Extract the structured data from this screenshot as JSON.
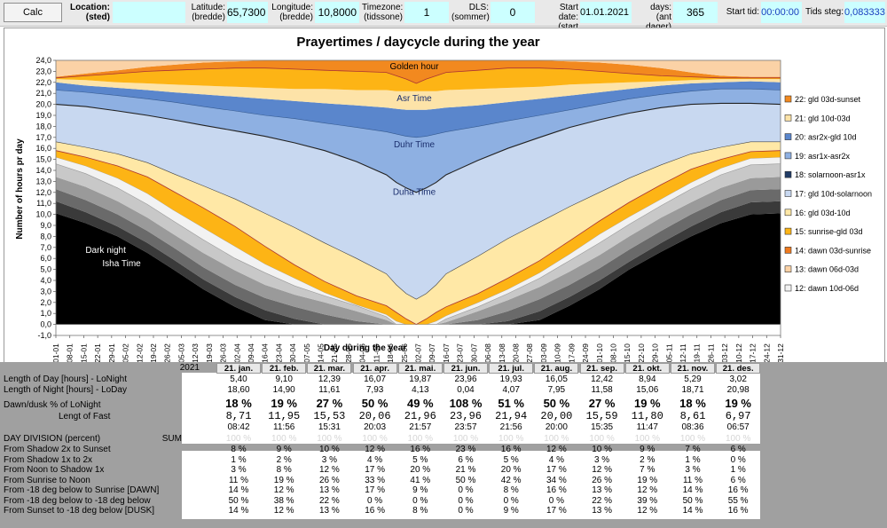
{
  "header": {
    "calc_label": "Calc",
    "location_label": "Location:",
    "location_sub": "(sted)",
    "location_value": "",
    "latitude_label": "Latitude:",
    "latitude_sub": "(bredde)",
    "latitude_value": "65,7300",
    "longitude_label": "Longitude:",
    "longitude_sub": "(bredde)",
    "longitude_value": "10,8000",
    "timezone_label": "Timezone:",
    "timezone_sub": "(tidssone)",
    "timezone_value": "1",
    "dls_label": "DLS:",
    "dls_sub": "(sommer)",
    "dls_value": "0",
    "start_date_label": "Start date:",
    "start_date_sub": "(start dato)",
    "start_date_value": "01.01.2021",
    "days_label": "days:",
    "days_sub": "(ant dager)",
    "days_value": "365",
    "start_time_label": "Start tid:",
    "start_time_value": "00:00:00",
    "step_label": "Tids steg:",
    "step_value": "0,083333"
  },
  "chart_data": {
    "type": "area",
    "title": "Prayertimes / daycycle during the year",
    "xlabel": "Day during the year",
    "ylabel": "Number of hours pr day",
    "ylim": [
      -1,
      24
    ],
    "yticks": [
      "-1,0",
      "0,0",
      "1,0",
      "2,0",
      "3,0",
      "4,0",
      "5,0",
      "6,0",
      "7,0",
      "8,0",
      "9,0",
      "10,0",
      "11,0",
      "12,0",
      "13,0",
      "14,0",
      "15,0",
      "16,0",
      "17,0",
      "18,0",
      "19,0",
      "20,0",
      "21,0",
      "22,0",
      "23,0",
      "24,0"
    ],
    "xticks": [
      "01-01",
      "08-01",
      "15-01",
      "22-01",
      "29-01",
      "05-02",
      "12-02",
      "19-02",
      "26-02",
      "05-03",
      "12-03",
      "19-03",
      "26-03",
      "02-04",
      "09-04",
      "16-04",
      "23-04",
      "30-04",
      "07-05",
      "14-05",
      "21-05",
      "28-05",
      "04-06",
      "11-06",
      "18-06",
      "25-06",
      "02-07",
      "09-07",
      "16-07",
      "23-07",
      "30-07",
      "06-08",
      "13-08",
      "20-08",
      "27-08",
      "03-09",
      "10-09",
      "17-09",
      "24-09",
      "01-10",
      "08-10",
      "15-10",
      "22-10",
      "29-10",
      "05-11",
      "12-11",
      "19-11",
      "26-11",
      "03-12",
      "10-12",
      "17-12",
      "24-12",
      "31-12"
    ],
    "annotations": [
      {
        "text": "Golden hour",
        "x": 180,
        "y": 23.2
      },
      {
        "text": "Asr Time",
        "x": 180,
        "y": 20.3
      },
      {
        "text": "Duhr Time",
        "x": 180,
        "y": 16.1
      },
      {
        "text": "Duha Time",
        "x": 180,
        "y": 11.8
      },
      {
        "text": "Dark night",
        "x": 25,
        "y": 6.5
      },
      {
        "text": "Isha Time",
        "x": 33,
        "y": 5.3
      }
    ],
    "legend_position": "right",
    "legend": [
      {
        "label": "22: gld 03d-sunset",
        "color": "#f2891f"
      },
      {
        "label": "21: gld 10d-03d",
        "color": "#fde3a8"
      },
      {
        "label": "20: asr2x-gld 10d",
        "color": "#5a86cc"
      },
      {
        "label": "19: asr1x-asr2x",
        "color": "#8eb0e2"
      },
      {
        "label": "18: solarnoon-asr1x",
        "color": "#203b66"
      },
      {
        "label": "17: gld 10d-solarnoon",
        "color": "#c8d8f0"
      },
      {
        "label": "16: gld 03d-10d",
        "color": "#ffe8a6"
      },
      {
        "label": "15: sunrise-gld 03d",
        "color": "#fdb415"
      },
      {
        "label": "14: dawn 03d-sunrise",
        "color": "#ef7a1e"
      },
      {
        "label": "13: dawn 06d-03d",
        "color": "#fbd2a6"
      },
      {
        "label": "12: dawn 10d-06d",
        "color": "#f2f2f2"
      }
    ],
    "boundaries_x": [
      0,
      15,
      31,
      46,
      59,
      74,
      90,
      105,
      120,
      135,
      151,
      166,
      171,
      176,
      181,
      186,
      191,
      196,
      212,
      227,
      243,
      258,
      273,
      288,
      304,
      319,
      334,
      349,
      364
    ],
    "boundaries": {
      "nightEdge": [
        10.1,
        9.2,
        8.0,
        6.5,
        5.0,
        3.2,
        1.6,
        0.4,
        0,
        0,
        0,
        0,
        0,
        0,
        0,
        0,
        0,
        0,
        0,
        0,
        0.4,
        1.7,
        3.2,
        5.0,
        6.6,
        8.0,
        9.2,
        10.0,
        10.1
      ],
      "g1": [
        11.2,
        10.2,
        8.9,
        7.4,
        5.9,
        4.1,
        2.5,
        1.3,
        0.5,
        0,
        0,
        0,
        0,
        0,
        0,
        0,
        0,
        0,
        0,
        0.3,
        1.2,
        2.5,
        4.0,
        5.7,
        7.4,
        8.9,
        10.2,
        11.1,
        11.2
      ],
      "g2": [
        12.3,
        11.3,
        10.0,
        8.5,
        7.0,
        5.2,
        3.6,
        2.4,
        1.6,
        0.9,
        0.3,
        0,
        0,
        0,
        0,
        0,
        0,
        0,
        0.4,
        1.2,
        2.3,
        3.6,
        5.1,
        6.8,
        8.5,
        10.0,
        11.3,
        12.2,
        12.3
      ],
      "g3": [
        13.4,
        12.5,
        11.2,
        9.7,
        8.2,
        6.5,
        4.9,
        3.6,
        2.7,
        2.0,
        1.2,
        0.4,
        0,
        0,
        0,
        0,
        0,
        0.2,
        1.2,
        2.2,
        3.4,
        4.8,
        6.3,
        8.0,
        9.7,
        11.1,
        12.4,
        13.3,
        13.4
      ],
      "g4": [
        14.6,
        13.7,
        12.4,
        10.9,
        9.4,
        7.7,
        6.0,
        4.7,
        3.5,
        2.6,
        1.7,
        0.7,
        0,
        0,
        0,
        0,
        0,
        0.5,
        1.6,
        2.8,
        4.2,
        5.8,
        7.4,
        9.1,
        10.8,
        12.3,
        13.6,
        14.5,
        14.6
      ],
      "sunrise": [
        15.2,
        14.4,
        13.3,
        11.9,
        10.4,
        8.8,
        7.1,
        5.5,
        4.2,
        2.9,
        1.8,
        0.9,
        0.3,
        0,
        0,
        0,
        0.3,
        0.8,
        2.0,
        3.2,
        4.7,
        6.4,
        8.2,
        9.8,
        11.4,
        12.9,
        14.2,
        15.1,
        15.2
      ],
      "goldDawn": [
        15.8,
        15.2,
        14.4,
        13.4,
        12.1,
        10.6,
        8.9,
        7.1,
        5.4,
        3.9,
        2.6,
        1.7,
        1.1,
        0.5,
        0,
        0.5,
        1.1,
        1.6,
        2.8,
        4.2,
        5.8,
        7.6,
        9.4,
        11.1,
        12.7,
        14.1,
        15.0,
        15.7,
        15.8
      ],
      "duha": [
        16.6,
        16.1,
        15.5,
        14.7,
        13.7,
        12.6,
        11.4,
        10.1,
        8.8,
        7.4,
        6.0,
        4.6,
        3.6,
        2.8,
        2.3,
        2.8,
        3.6,
        4.6,
        6.2,
        7.8,
        9.3,
        10.7,
        12.0,
        13.3,
        14.5,
        15.5,
        16.1,
        16.6,
        16.6
      ],
      "noon": [
        20.0,
        19.8,
        19.4,
        19.0,
        18.6,
        18.1,
        17.6,
        17.1,
        16.5,
        15.8,
        14.8,
        13.6,
        12.9,
        12.4,
        12.0,
        12.4,
        12.9,
        13.6,
        14.9,
        16.0,
        17.0,
        17.9,
        18.6,
        19.2,
        19.7,
        20.0,
        20.1,
        20.1,
        20.0
      ],
      "asr1": [
        21.3,
        21.1,
        20.8,
        20.5,
        20.2,
        19.8,
        19.4,
        19.0,
        18.7,
        18.3,
        17.9,
        17.5,
        17.3,
        17.1,
        17.0,
        17.1,
        17.3,
        17.5,
        18.0,
        18.5,
        19.0,
        19.5,
        20.0,
        20.5,
        20.9,
        21.2,
        21.4,
        21.4,
        21.3
      ],
      "asr2": [
        22.0,
        21.7,
        21.5,
        21.3,
        21.1,
        20.9,
        20.7,
        20.5,
        20.3,
        20.1,
        19.9,
        19.7,
        19.6,
        19.5,
        19.5,
        19.5,
        19.6,
        19.7,
        19.9,
        20.2,
        20.5,
        20.8,
        21.1,
        21.4,
        21.7,
        21.9,
        22.0,
        22.1,
        22.0
      ],
      "gold10": [
        22.3,
        22.2,
        22.0,
        21.9,
        21.8,
        21.7,
        21.6,
        21.5,
        21.4,
        21.4,
        21.3,
        21.3,
        21.2,
        21.2,
        21.2,
        21.2,
        21.2,
        21.3,
        21.4,
        21.5,
        21.6,
        21.8,
        21.9,
        22.0,
        22.1,
        22.2,
        22.3,
        22.3,
        22.3
      ],
      "gold3": [
        22.4,
        22.6,
        22.8,
        23.0,
        23.1,
        23.2,
        23.3,
        23.3,
        23.2,
        23.1,
        23.0,
        22.9,
        22.6,
        22.3,
        21.9,
        22.3,
        22.6,
        22.9,
        23.1,
        23.3,
        23.3,
        23.2,
        23.0,
        22.8,
        22.6,
        22.5,
        22.4,
        22.4,
        22.4
      ],
      "sunset": [
        22.5,
        22.8,
        23.1,
        23.4,
        23.6,
        23.8,
        23.9,
        24.0,
        24.0,
        24.0,
        24.0,
        24.0,
        24.0,
        24.0,
        24.0,
        24.0,
        24.0,
        24.0,
        24.0,
        24.0,
        24.0,
        23.9,
        23.8,
        23.6,
        23.3,
        22.9,
        22.6,
        22.5,
        22.5
      ]
    }
  },
  "table": {
    "year": "2021",
    "months": [
      "21. jan.",
      "21. feb.",
      "21. mar.",
      "21. apr.",
      "21. mai.",
      "21. jun.",
      "21. jul.",
      "21. aug.",
      "21. sep.",
      "21. okt.",
      "21. nov.",
      "21. des."
    ],
    "length_day_label": "Length of Day [hours] - LoNight",
    "length_day": [
      "5,40",
      "9,10",
      "12,39",
      "16,07",
      "19,87",
      "23,96",
      "19,93",
      "16,05",
      "12,42",
      "8,94",
      "5,29",
      "3,02"
    ],
    "length_night_label": "Length of Night [hours] - LoDay",
    "length_night": [
      "18,60",
      "14,90",
      "11,61",
      "7,93",
      "4,13",
      "0,04",
      "4,07",
      "7,95",
      "11,58",
      "15,06",
      "18,71",
      "20,98"
    ],
    "dawn_label": "Dawn/dusk % of LoNight",
    "dawn": [
      "18 %",
      "19 %",
      "27 %",
      "50 %",
      "49 %",
      "108 %",
      "51 %",
      "50 %",
      "27 %",
      "19 %",
      "18 %",
      "19 %"
    ],
    "fast_label": "Lengt of Fast",
    "fast": [
      "8,71",
      "11,95",
      "15,53",
      "20,06",
      "21,96",
      "23,96",
      "21,94",
      "20,00",
      "15,59",
      "11,80",
      "8,61",
      "6,97"
    ],
    "fast_time": [
      "08:42",
      "11:56",
      "15:31",
      "20:03",
      "21:57",
      "23:57",
      "21:56",
      "20:00",
      "15:35",
      "11:47",
      "08:36",
      "06:57"
    ],
    "division_label": "DAY DIVISION (percent)",
    "sum_label": "SUM",
    "sum_values": [
      "100 %",
      "100 %",
      "100 %",
      "100 %",
      "100 %",
      "100 %",
      "100 %",
      "100 %",
      "100 %",
      "100 %",
      "100 %",
      "100 %"
    ],
    "division_rows": [
      {
        "label": "From Shadow 2x to Sunset",
        "values": [
          "8 %",
          "9 %",
          "10 %",
          "12 %",
          "16 %",
          "23 %",
          "16 %",
          "12 %",
          "10 %",
          "9 %",
          "7 %",
          "6 %"
        ]
      },
      {
        "label": "From Shadow 1x to 2x",
        "values": [
          "1 %",
          "2 %",
          "3 %",
          "4 %",
          "5 %",
          "6 %",
          "5 %",
          "4 %",
          "3 %",
          "2 %",
          "1 %",
          "0 %"
        ]
      },
      {
        "label": "From Noon to Shadow 1x",
        "values": [
          "3 %",
          "8 %",
          "12 %",
          "17 %",
          "20 %",
          "21 %",
          "20 %",
          "17 %",
          "12 %",
          "7 %",
          "3 %",
          "1 %"
        ]
      },
      {
        "label": "From Sunrise to Noon",
        "values": [
          "11 %",
          "19 %",
          "26 %",
          "33 %",
          "41 %",
          "50 %",
          "42 %",
          "34 %",
          "26 %",
          "19 %",
          "11 %",
          "6 %"
        ]
      },
      {
        "label": "From -18 deg below to Sunrise [DAWN]",
        "values": [
          "14 %",
          "12 %",
          "13 %",
          "17 %",
          "9 %",
          "0 %",
          "8 %",
          "16 %",
          "13 %",
          "12 %",
          "14 %",
          "16 %"
        ]
      },
      {
        "label": "From -18 deg below to -18 deg below",
        "values": [
          "50 %",
          "38 %",
          "22 %",
          "0 %",
          "0 %",
          "0 %",
          "0 %",
          "0 %",
          "22 %",
          "39 %",
          "50 %",
          "55 %"
        ]
      },
      {
        "label": "From Sunset to -18 deg below [DUSK]",
        "values": [
          "14 %",
          "12 %",
          "13 %",
          "16 %",
          "8 %",
          "0 %",
          "9 %",
          "17 %",
          "13 %",
          "12 %",
          "14 %",
          "16 %"
        ]
      }
    ]
  }
}
